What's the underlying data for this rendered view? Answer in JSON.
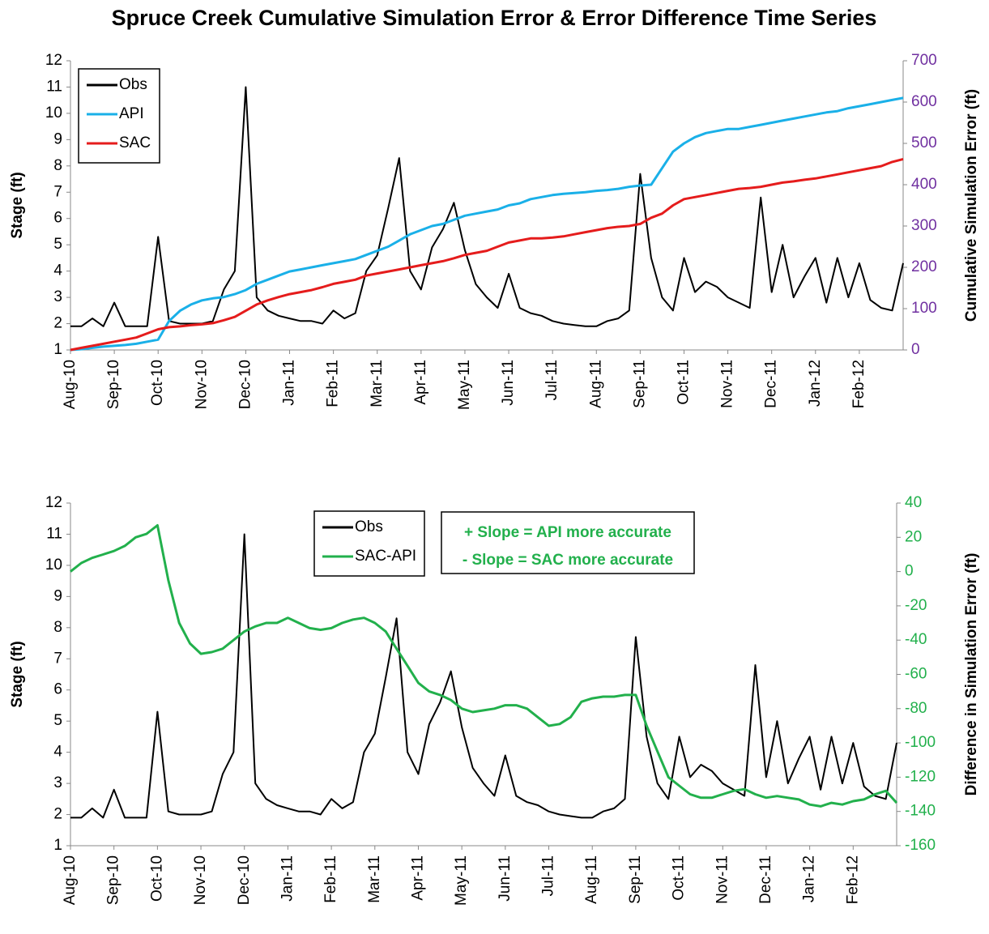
{
  "title": "Spruce Creek Cumulative Simulation Error & Error Difference Time Series",
  "chart_data": [
    {
      "type": "line",
      "ylabel": "Stage (ft)",
      "y2label": "Cumulative Simulation Error (ft)",
      "legend": "upper left",
      "y2color": "#7030a0",
      "categories": [
        "Aug-10",
        null,
        null,
        null,
        "Sep-10",
        null,
        null,
        null,
        "Oct-10",
        null,
        null,
        null,
        "Nov-10",
        null,
        null,
        null,
        "Dec-10",
        null,
        null,
        null,
        "Jan-11",
        null,
        null,
        null,
        "Feb-11",
        null,
        null,
        null,
        "Mar-11",
        null,
        null,
        null,
        "Apr-11",
        null,
        null,
        null,
        "May-11",
        null,
        null,
        null,
        "Jun-11",
        null,
        null,
        null,
        "Jul-11",
        null,
        null,
        null,
        "Aug-11",
        null,
        null,
        null,
        "Sep-11",
        null,
        null,
        null,
        "Oct-11",
        null,
        null,
        null,
        "Nov-11",
        null,
        null,
        null,
        "Dec-11",
        null,
        null,
        null,
        "Jan-12",
        null,
        null,
        null,
        "Feb-12",
        null,
        null,
        null,
        null
      ],
      "ylim": [
        1,
        12
      ],
      "yticks": [
        1,
        2,
        3,
        4,
        5,
        6,
        7,
        8,
        9,
        10,
        11,
        12
      ],
      "y2lim": [
        0,
        700
      ],
      "y2ticks": [
        0,
        100,
        200,
        300,
        400,
        500,
        600,
        700
      ],
      "series": [
        {
          "name": "Obs",
          "color": "#000000",
          "axis": "y",
          "values": [
            1.9,
            1.9,
            2.2,
            1.9,
            2.8,
            1.9,
            1.9,
            1.9,
            5.3,
            2.1,
            2.0,
            2.0,
            2.0,
            2.1,
            3.3,
            4.0,
            11.0,
            3.0,
            2.5,
            2.3,
            2.2,
            2.1,
            2.1,
            2.0,
            2.5,
            2.2,
            2.4,
            4.0,
            4.6,
            6.4,
            8.3,
            4.0,
            3.3,
            4.9,
            5.6,
            6.6,
            4.8,
            3.5,
            3.0,
            2.6,
            3.9,
            2.6,
            2.4,
            2.3,
            2.1,
            2.0,
            1.95,
            1.9,
            1.9,
            2.1,
            2.2,
            2.5,
            7.7,
            4.5,
            3.0,
            2.5,
            4.5,
            3.2,
            3.6,
            3.4,
            3.0,
            2.8,
            2.6,
            6.8,
            3.2,
            5.0,
            3.0,
            3.8,
            4.5,
            2.8,
            4.5,
            3.0,
            4.3,
            2.9,
            2.6,
            2.5,
            4.3
          ]
        },
        {
          "name": "API",
          "color": "#1ab0e8",
          "axis": "y2",
          "values": [
            0,
            2,
            5,
            8,
            10,
            12,
            15,
            20,
            25,
            70,
            95,
            110,
            120,
            125,
            128,
            135,
            145,
            160,
            170,
            180,
            190,
            195,
            200,
            205,
            210,
            215,
            220,
            230,
            240,
            250,
            265,
            280,
            290,
            300,
            305,
            315,
            325,
            330,
            335,
            340,
            350,
            355,
            365,
            370,
            375,
            378,
            380,
            382,
            385,
            387,
            390,
            395,
            398,
            400,
            440,
            480,
            500,
            515,
            525,
            530,
            535,
            535,
            540,
            545,
            550,
            555,
            560,
            565,
            570,
            575,
            578,
            585,
            590,
            595,
            600,
            605,
            610
          ]
        },
        {
          "name": "SAC",
          "color": "#e51c1c",
          "axis": "y2",
          "values": [
            0,
            5,
            10,
            15,
            20,
            25,
            30,
            40,
            50,
            55,
            57,
            60,
            62,
            65,
            72,
            80,
            95,
            110,
            120,
            128,
            135,
            140,
            145,
            152,
            160,
            165,
            170,
            180,
            185,
            190,
            195,
            200,
            205,
            210,
            215,
            222,
            230,
            235,
            240,
            250,
            260,
            265,
            270,
            270,
            272,
            275,
            280,
            285,
            290,
            295,
            298,
            300,
            305,
            320,
            330,
            350,
            365,
            370,
            375,
            380,
            385,
            390,
            392,
            395,
            400,
            405,
            408,
            412,
            415,
            420,
            425,
            430,
            435,
            440,
            445,
            455,
            462
          ]
        }
      ]
    },
    {
      "type": "line",
      "ylabel": "Stage (ft)",
      "y2label": "Difference in Simulation Error (ft)",
      "legend": "upper center",
      "y2color": "#22b04c",
      "annotations": [
        "+ Slope = API more accurate",
        "- Slope = SAC more accurate"
      ],
      "categories": [
        "Aug-10",
        null,
        null,
        null,
        "Sep-10",
        null,
        null,
        null,
        "Oct-10",
        null,
        null,
        null,
        "Nov-10",
        null,
        null,
        null,
        "Dec-10",
        null,
        null,
        null,
        "Jan-11",
        null,
        null,
        null,
        "Feb-11",
        null,
        null,
        null,
        "Mar-11",
        null,
        null,
        null,
        "Apr-11",
        null,
        null,
        null,
        "May-11",
        null,
        null,
        null,
        "Jun-11",
        null,
        null,
        null,
        "Jul-11",
        null,
        null,
        null,
        "Aug-11",
        null,
        null,
        null,
        "Sep-11",
        null,
        null,
        null,
        "Oct-11",
        null,
        null,
        null,
        "Nov-11",
        null,
        null,
        null,
        "Dec-11",
        null,
        null,
        null,
        "Jan-12",
        null,
        null,
        null,
        "Feb-12",
        null,
        null,
        null,
        null
      ],
      "ylim": [
        1,
        12
      ],
      "yticks": [
        1,
        2,
        3,
        4,
        5,
        6,
        7,
        8,
        9,
        10,
        11,
        12
      ],
      "y2lim": [
        -160,
        40
      ],
      "y2ticks": [
        -160,
        -140,
        -120,
        -100,
        -80,
        -60,
        -40,
        -20,
        0,
        20,
        40
      ],
      "series": [
        {
          "name": "Obs",
          "color": "#000000",
          "axis": "y",
          "values": [
            1.9,
            1.9,
            2.2,
            1.9,
            2.8,
            1.9,
            1.9,
            1.9,
            5.3,
            2.1,
            2.0,
            2.0,
            2.0,
            2.1,
            3.3,
            4.0,
            11.0,
            3.0,
            2.5,
            2.3,
            2.2,
            2.1,
            2.1,
            2.0,
            2.5,
            2.2,
            2.4,
            4.0,
            4.6,
            6.4,
            8.3,
            4.0,
            3.3,
            4.9,
            5.6,
            6.6,
            4.8,
            3.5,
            3.0,
            2.6,
            3.9,
            2.6,
            2.4,
            2.3,
            2.1,
            2.0,
            1.95,
            1.9,
            1.9,
            2.1,
            2.2,
            2.5,
            7.7,
            4.5,
            3.0,
            2.5,
            4.5,
            3.2,
            3.6,
            3.4,
            3.0,
            2.8,
            2.6,
            6.8,
            3.2,
            5.0,
            3.0,
            3.8,
            4.5,
            2.8,
            4.5,
            3.0,
            4.3,
            2.9,
            2.6,
            2.5,
            4.3
          ]
        },
        {
          "name": "SAC-API",
          "color": "#22b04c",
          "axis": "y2",
          "values": [
            0,
            5,
            8,
            10,
            12,
            15,
            20,
            22,
            27,
            -5,
            -30,
            -42,
            -48,
            -47,
            -45,
            -40,
            -35,
            -32,
            -30,
            -30,
            -27,
            -30,
            -33,
            -34,
            -33,
            -30,
            -28,
            -27,
            -30,
            -35,
            -45,
            -55,
            -65,
            -70,
            -72,
            -75,
            -80,
            -82,
            -81,
            -80,
            -78,
            -78,
            -80,
            -85,
            -90,
            -89,
            -85,
            -76,
            -74,
            -73,
            -73,
            -72,
            -72,
            -90,
            -105,
            -120,
            -125,
            -130,
            -132,
            -132,
            -130,
            -128,
            -127,
            -130,
            -132,
            -131,
            -132,
            -133,
            -136,
            -137,
            -135,
            -136,
            -134,
            -133,
            -130,
            -128,
            -135
          ]
        }
      ]
    }
  ]
}
